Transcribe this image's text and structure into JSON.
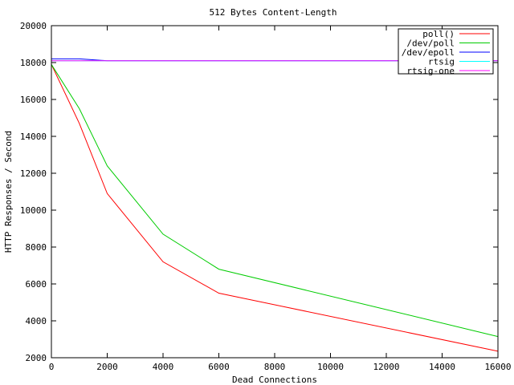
{
  "chart_data": {
    "type": "line",
    "title": "512 Bytes Content-Length",
    "xlabel": "Dead Connections",
    "ylabel": "HTTP Responses / Second",
    "xlim": [
      0,
      16000
    ],
    "ylim": [
      2000,
      20000
    ],
    "x_ticks": [
      "0",
      "2000",
      "4000",
      "6000",
      "8000",
      "10000",
      "12000",
      "14000",
      "16000"
    ],
    "y_ticks": [
      "2000",
      "4000",
      "6000",
      "8000",
      "10000",
      "12000",
      "14000",
      "16000",
      "18000",
      "20000"
    ],
    "x_tick_values": [
      0,
      2000,
      4000,
      6000,
      8000,
      10000,
      12000,
      14000,
      16000
    ],
    "y_tick_values": [
      2000,
      4000,
      6000,
      8000,
      10000,
      12000,
      14000,
      16000,
      18000,
      20000
    ],
    "grid": false,
    "legend_position": "top-right",
    "series": [
      {
        "name": "poll()",
        "color": "#ff0000",
        "x": [
          0,
          1000,
          2000,
          4000,
          6000,
          16000
        ],
        "y": [
          17900,
          14700,
          10900,
          7200,
          5500,
          2350
        ]
      },
      {
        "name": "/dev/poll",
        "color": "#00cc00",
        "x": [
          0,
          1000,
          2000,
          4000,
          6000,
          16000
        ],
        "y": [
          17900,
          15500,
          12400,
          8700,
          6800,
          3150
        ]
      },
      {
        "name": "/dev/epoll",
        "color": "#0000ff",
        "x": [
          0,
          1000,
          2000,
          4000,
          6000,
          16000
        ],
        "y": [
          18200,
          18200,
          18100,
          18100,
          18100,
          18100
        ]
      },
      {
        "name": "rtsig",
        "color": "#00ffff",
        "x": [
          0,
          1000,
          2000,
          4000,
          6000,
          16000
        ],
        "y": [
          18100,
          18100,
          18100,
          18100,
          18100,
          18100
        ]
      },
      {
        "name": "rtsig-one",
        "color": "#ff00ff",
        "x": [
          0,
          1000,
          2000,
          4000,
          6000,
          16000
        ],
        "y": [
          18100,
          18100,
          18100,
          18100,
          18100,
          18100
        ]
      }
    ]
  }
}
